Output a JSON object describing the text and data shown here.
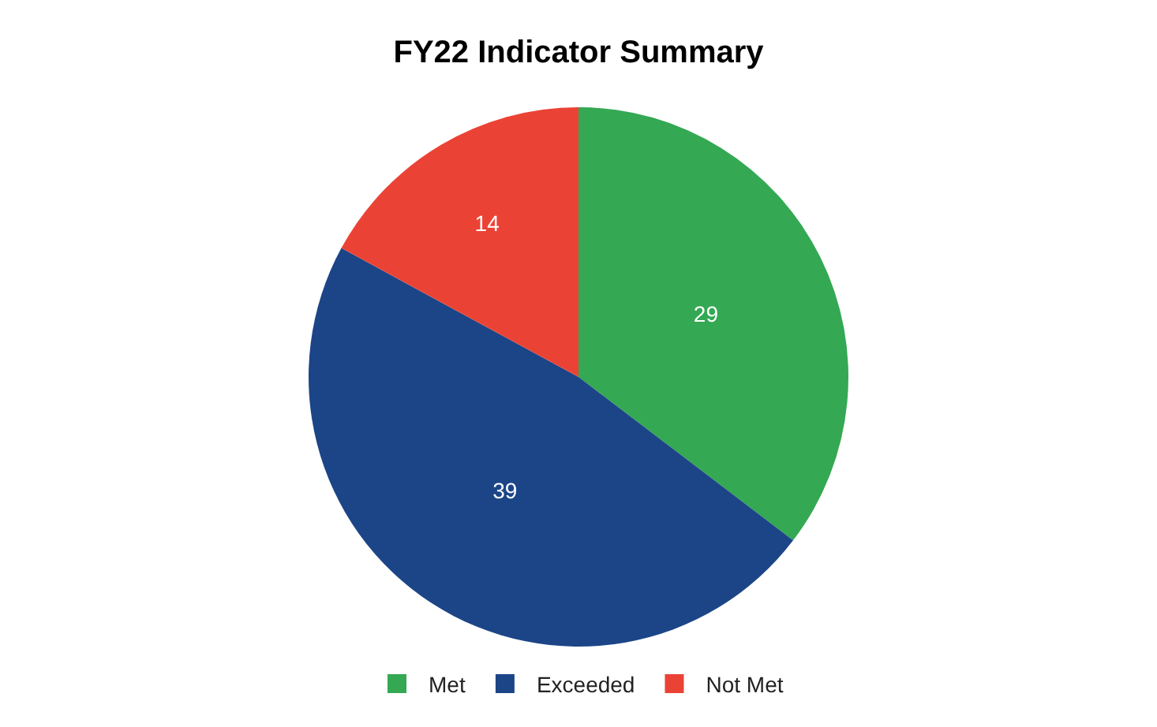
{
  "chart_data": {
    "type": "pie",
    "title": "FY22 Indicator Summary",
    "categories": [
      "Met",
      "Exceeded",
      "Not Met"
    ],
    "values": [
      29,
      39,
      14
    ],
    "colors": [
      "#34a853",
      "#1c4587",
      "#ea4335"
    ],
    "data_labels": true,
    "legend": "bottom"
  }
}
